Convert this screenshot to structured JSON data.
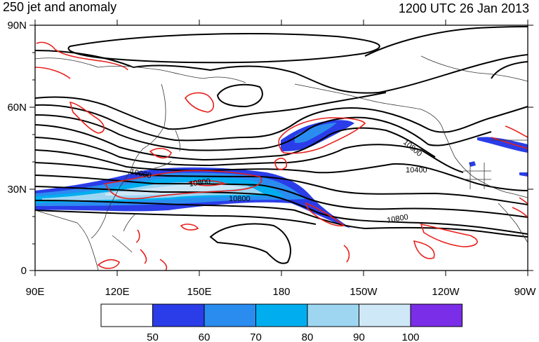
{
  "title_left": "250 jet and anomaly",
  "title_right": "1200 UTC 26 Jan 2013",
  "y_axis_labels": [
    "90N",
    "60N",
    "30N",
    "0"
  ],
  "x_axis_labels": [
    "90E",
    "120E",
    "150E",
    "180",
    "150W",
    "120W",
    "90W"
  ],
  "contour_labels": [
    "10000",
    "10400",
    "10800",
    "10800",
    "10800",
    "10400",
    "10800"
  ],
  "colorbar": {
    "colors": [
      "#ffffff",
      "#2a3de8",
      "#2b8cf0",
      "#00aef0",
      "#9ed6f2",
      "#cfe8f7",
      "#7b2ee8"
    ],
    "labels": [
      "50",
      "60",
      "70",
      "80",
      "90",
      "100"
    ]
  },
  "colors": {
    "contour": "#000000",
    "anomaly": "#e8201c",
    "coast": "#333333"
  }
}
